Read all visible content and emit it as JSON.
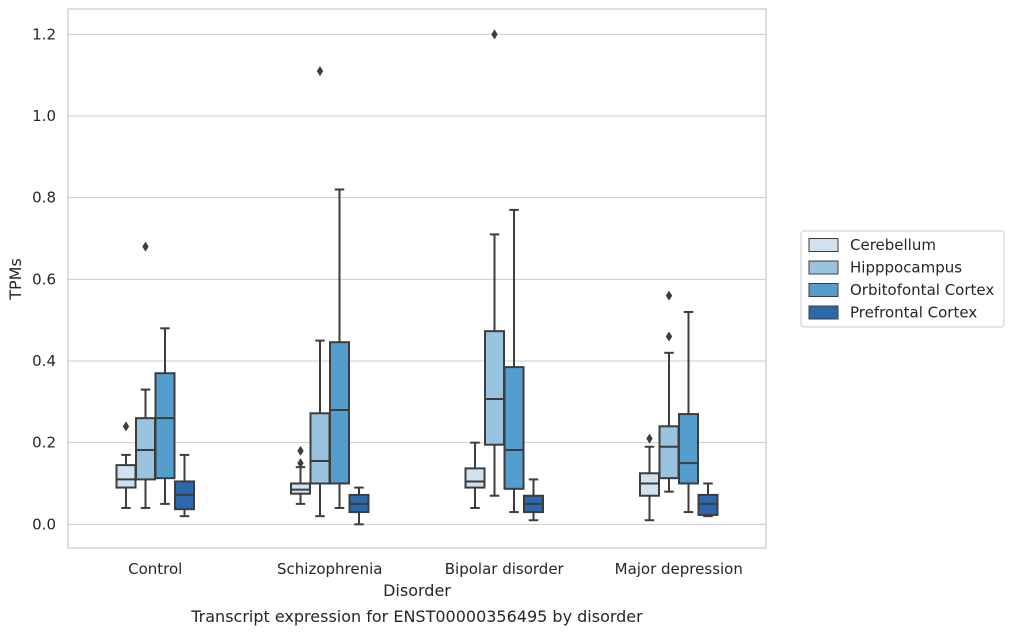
{
  "caption": "Transcript expression for ENST00000356495 by disorder",
  "chart_data": {
    "type": "box",
    "xlabel": "Disorder",
    "ylabel": "TPMs",
    "ylim": [
      -0.058,
      1.262
    ],
    "yticks": [
      0.0,
      0.2,
      0.4,
      0.6,
      0.8,
      1.0,
      1.2
    ],
    "ytick_labels": [
      "0.0",
      "0.2",
      "0.4",
      "0.6",
      "0.8",
      "1.0",
      "1.2"
    ],
    "grid": "horizontal",
    "legend_position": "right",
    "categories": [
      "Control",
      "Schizophrenia",
      "Bipolar disorder",
      "Major depression"
    ],
    "series": [
      {
        "name": "Cerebellum",
        "color": "#d0e1f2",
        "boxes": [
          {
            "whisker_low": 0.04,
            "q1": 0.09,
            "median": 0.11,
            "q3": 0.145,
            "whisker_high": 0.17,
            "outliers": [
              0.24
            ]
          },
          {
            "whisker_low": 0.05,
            "q1": 0.075,
            "median": 0.085,
            "q3": 0.1,
            "whisker_high": 0.14,
            "outliers": [
              0.15,
              0.18
            ]
          },
          {
            "whisker_low": 0.04,
            "q1": 0.09,
            "median": 0.105,
            "q3": 0.137,
            "whisker_high": 0.2,
            "outliers": []
          },
          {
            "whisker_low": 0.01,
            "q1": 0.07,
            "median": 0.1,
            "q3": 0.125,
            "whisker_high": 0.19,
            "outliers": [
              0.21
            ]
          }
        ]
      },
      {
        "name": "Hipppocampus",
        "color": "#9ac3df",
        "boxes": [
          {
            "whisker_low": 0.04,
            "q1": 0.11,
            "median": 0.182,
            "q3": 0.26,
            "whisker_high": 0.33,
            "outliers": [
              0.68
            ]
          },
          {
            "whisker_low": 0.02,
            "q1": 0.1,
            "median": 0.155,
            "q3": 0.272,
            "whisker_high": 0.45,
            "outliers": [
              1.11
            ]
          },
          {
            "whisker_low": 0.07,
            "q1": 0.195,
            "median": 0.307,
            "q3": 0.473,
            "whisker_high": 0.71,
            "outliers": [
              1.2
            ]
          },
          {
            "whisker_low": 0.08,
            "q1": 0.113,
            "median": 0.19,
            "q3": 0.24,
            "whisker_high": 0.42,
            "outliers": [
              0.46,
              0.56
            ]
          }
        ]
      },
      {
        "name": "Orbitofontal Cortex",
        "color": "#539ecd",
        "boxes": [
          {
            "whisker_low": 0.05,
            "q1": 0.113,
            "median": 0.26,
            "q3": 0.37,
            "whisker_high": 0.48,
            "outliers": []
          },
          {
            "whisker_low": 0.04,
            "q1": 0.1,
            "median": 0.28,
            "q3": 0.446,
            "whisker_high": 0.82,
            "outliers": []
          },
          {
            "whisker_low": 0.03,
            "q1": 0.087,
            "median": 0.182,
            "q3": 0.385,
            "whisker_high": 0.77,
            "outliers": []
          },
          {
            "whisker_low": 0.03,
            "q1": 0.1,
            "median": 0.15,
            "q3": 0.27,
            "whisker_high": 0.52,
            "outliers": []
          }
        ]
      },
      {
        "name": "Prefrontal Cortex",
        "color": "#2b69ac",
        "boxes": [
          {
            "whisker_low": 0.02,
            "q1": 0.037,
            "median": 0.072,
            "q3": 0.105,
            "whisker_high": 0.17,
            "outliers": []
          },
          {
            "whisker_low": 0.0,
            "q1": 0.03,
            "median": 0.05,
            "q3": 0.072,
            "whisker_high": 0.09,
            "outliers": []
          },
          {
            "whisker_low": 0.01,
            "q1": 0.03,
            "median": 0.05,
            "q3": 0.07,
            "whisker_high": 0.11,
            "outliers": []
          },
          {
            "whisker_low": 0.02,
            "q1": 0.023,
            "median": 0.05,
            "q3": 0.072,
            "whisker_high": 0.1,
            "outliers": []
          }
        ]
      }
    ]
  }
}
